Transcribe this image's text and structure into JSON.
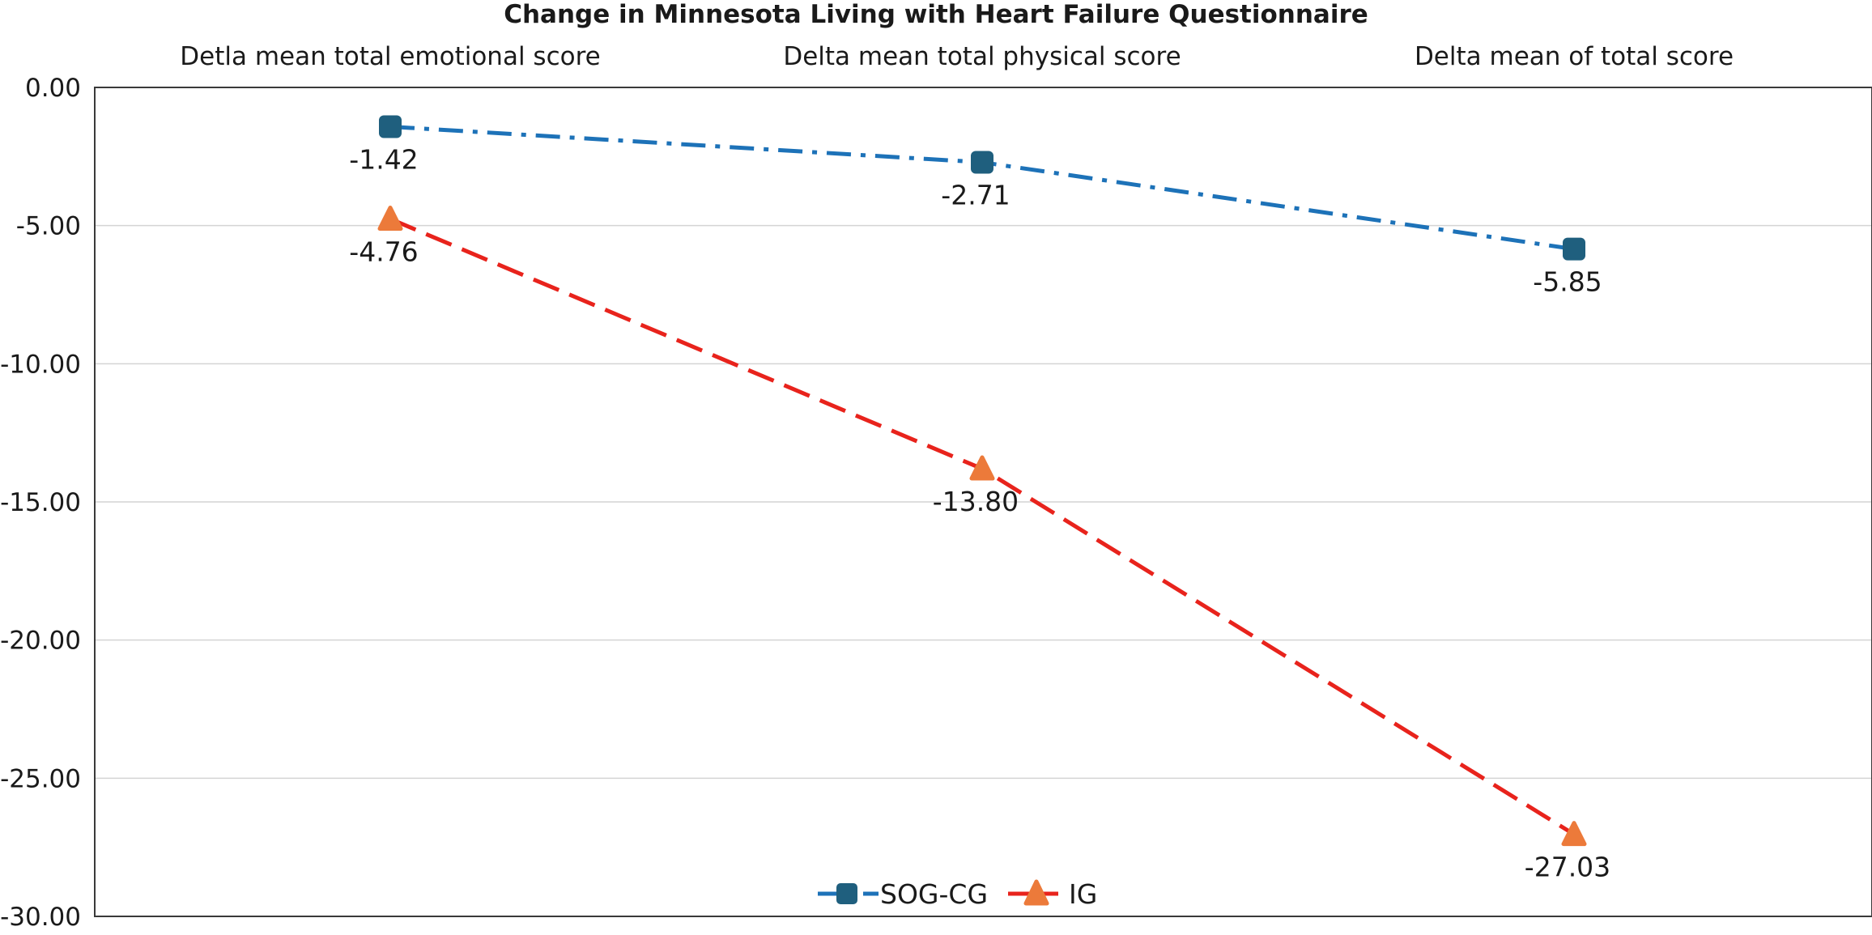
{
  "chart_data": {
    "type": "line",
    "title": "Change in Minnesota Living with Heart Failure Questionnaire",
    "categories": [
      "Detla mean total emotional score",
      "Delta mean total physical score",
      "Delta mean of total score"
    ],
    "ylim": [
      -30,
      0
    ],
    "yticks": [
      0,
      -5,
      -10,
      -15,
      -20,
      -25,
      -30
    ],
    "ytick_labels": [
      "0.00",
      "-5.00",
      "-10.00",
      "-15.00",
      "-20.00",
      "-25.00",
      "-30.00"
    ],
    "grid": true,
    "legend_position": "bottom",
    "series": [
      {
        "name": "SOG-CG",
        "values": [
          -1.42,
          -2.71,
          -5.85
        ],
        "labels": [
          "-1.42",
          "-2.71",
          "-5.85"
        ],
        "line_color": "#1d72b8",
        "marker_color": "#1f5f7e",
        "marker": "square",
        "line_style": "dash-dot"
      },
      {
        "name": "IG",
        "values": [
          -4.76,
          -13.8,
          -27.03
        ],
        "labels": [
          "-4.76",
          "-13.80",
          "-27.03"
        ],
        "line_color": "#e8231c",
        "marker_color": "#ec7a3a",
        "marker": "triangle",
        "line_style": "dash"
      }
    ]
  }
}
